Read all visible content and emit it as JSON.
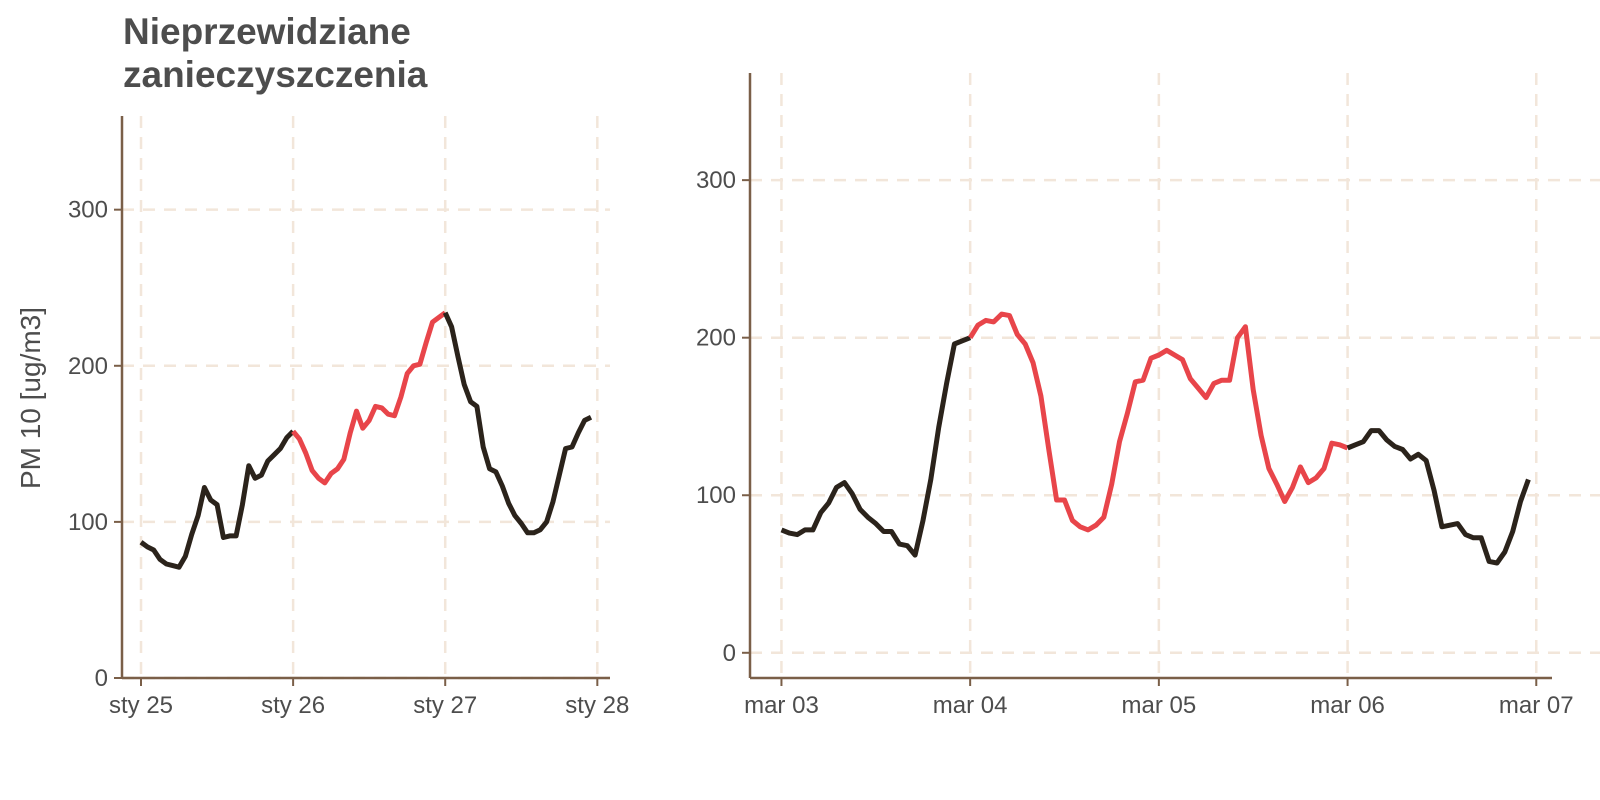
{
  "title_lines": [
    "Nieprzewidziane",
    "zanieczyszczenia"
  ],
  "ylabel": "PM 10 [ug/m3]",
  "colors": {
    "normal": "#2b231b",
    "exceed": "#e8454a",
    "axis": "#7a5f48",
    "grid": "#f2e6da",
    "text": "#4d4d4d"
  },
  "chart_data": [
    {
      "type": "line",
      "title": "Nieprzewidziane zanieczyszczenia",
      "ylabel": "PM 10 [ug/m3]",
      "ylim": [
        0,
        360
      ],
      "yticks": [
        0,
        100,
        200,
        300
      ],
      "xlim": [
        "2013-01-24T21:00",
        "2013-01-28T02:00"
      ],
      "xticks": [
        {
          "value": "2013-01-25T00:00",
          "label": "sty 25"
        },
        {
          "value": "2013-01-26T00:00",
          "label": "sty 26"
        },
        {
          "value": "2013-01-27T00:00",
          "label": "sty 27"
        },
        {
          "value": "2013-01-28T00:00",
          "label": "sty 28"
        }
      ],
      "grid": true,
      "series": [
        {
          "color_key": "normal",
          "x": [
            "2013-01-25T00:00",
            "2013-01-25T01:00",
            "2013-01-25T02:00",
            "2013-01-25T03:00",
            "2013-01-25T04:00",
            "2013-01-25T05:00",
            "2013-01-25T06:00",
            "2013-01-25T07:00",
            "2013-01-25T08:00",
            "2013-01-25T09:00",
            "2013-01-25T10:00",
            "2013-01-25T11:00",
            "2013-01-25T12:00",
            "2013-01-25T13:00",
            "2013-01-25T14:00",
            "2013-01-25T15:00",
            "2013-01-25T16:00",
            "2013-01-25T17:00",
            "2013-01-25T18:00",
            "2013-01-25T19:00",
            "2013-01-25T20:00",
            "2013-01-25T21:00",
            "2013-01-25T22:00",
            "2013-01-25T23:00",
            "2013-01-26T00:00"
          ],
          "values": [
            87,
            84,
            82,
            76,
            73,
            72,
            71,
            78,
            92,
            104,
            122,
            114,
            111,
            90,
            91,
            91,
            111,
            136,
            128,
            130,
            139,
            143,
            147,
            154,
            158
          ]
        },
        {
          "color_key": "exceed",
          "x": [
            "2013-01-26T00:00",
            "2013-01-26T01:00",
            "2013-01-26T02:00",
            "2013-01-26T03:00",
            "2013-01-26T04:00",
            "2013-01-26T05:00",
            "2013-01-26T06:00",
            "2013-01-26T07:00",
            "2013-01-26T08:00",
            "2013-01-26T09:00",
            "2013-01-26T10:00",
            "2013-01-26T11:00",
            "2013-01-26T12:00",
            "2013-01-26T13:00",
            "2013-01-26T14:00",
            "2013-01-26T15:00",
            "2013-01-26T16:00",
            "2013-01-26T17:00",
            "2013-01-26T18:00",
            "2013-01-26T19:00",
            "2013-01-26T20:00",
            "2013-01-26T21:00",
            "2013-01-26T22:00",
            "2013-01-26T23:00",
            "2013-01-27T00:00"
          ],
          "values": [
            158,
            153,
            144,
            133,
            128,
            125,
            131,
            134,
            140,
            157,
            171,
            160,
            165,
            174,
            173,
            169,
            168,
            180,
            195,
            200,
            201,
            215,
            228,
            231,
            234
          ]
        },
        {
          "color_key": "normal",
          "x": [
            "2013-01-27T00:00",
            "2013-01-27T01:00",
            "2013-01-27T02:00",
            "2013-01-27T03:00",
            "2013-01-27T04:00",
            "2013-01-27T05:00",
            "2013-01-27T06:00",
            "2013-01-27T07:00",
            "2013-01-27T08:00",
            "2013-01-27T09:00",
            "2013-01-27T10:00",
            "2013-01-27T11:00",
            "2013-01-27T12:00",
            "2013-01-27T13:00",
            "2013-01-27T14:00",
            "2013-01-27T15:00",
            "2013-01-27T16:00",
            "2013-01-27T17:00",
            "2013-01-27T18:00",
            "2013-01-27T19:00",
            "2013-01-27T20:00",
            "2013-01-27T21:00",
            "2013-01-27T22:00",
            "2013-01-27T23:00"
          ],
          "values": [
            234,
            225,
            206,
            188,
            177,
            174,
            148,
            134,
            132,
            123,
            112,
            104,
            99,
            93,
            93,
            95,
            100,
            113,
            130,
            147,
            148,
            157,
            165,
            167
          ]
        }
      ]
    },
    {
      "type": "line",
      "ylim": [
        -16,
        368
      ],
      "yticks": [
        0,
        100,
        200,
        300
      ],
      "xlim": [
        "2013-03-02T20:00",
        "2013-03-07T02:00"
      ],
      "xticks": [
        {
          "value": "2013-03-03T00:00",
          "label": "mar 03"
        },
        {
          "value": "2013-03-04T00:00",
          "label": "mar 04"
        },
        {
          "value": "2013-03-05T00:00",
          "label": "mar 05"
        },
        {
          "value": "2013-03-06T00:00",
          "label": "mar 06"
        },
        {
          "value": "2013-03-07T00:00",
          "label": "mar 07"
        }
      ],
      "grid": true,
      "series": [
        {
          "color_key": "normal",
          "x": [
            "2013-03-03T00:00",
            "2013-03-03T01:00",
            "2013-03-03T02:00",
            "2013-03-03T03:00",
            "2013-03-03T04:00",
            "2013-03-03T05:00",
            "2013-03-03T06:00",
            "2013-03-03T07:00",
            "2013-03-03T08:00",
            "2013-03-03T09:00",
            "2013-03-03T10:00",
            "2013-03-03T11:00",
            "2013-03-03T12:00",
            "2013-03-03T13:00",
            "2013-03-03T14:00",
            "2013-03-03T15:00",
            "2013-03-03T16:00",
            "2013-03-03T17:00",
            "2013-03-03T18:00",
            "2013-03-03T19:00",
            "2013-03-03T20:00",
            "2013-03-03T21:00",
            "2013-03-03T22:00",
            "2013-03-03T23:00",
            "2013-03-04T00:00"
          ],
          "values": [
            78,
            76,
            75,
            78,
            78,
            89,
            95,
            105,
            108,
            101,
            91,
            86,
            82,
            77,
            77,
            69,
            68,
            62,
            84,
            110,
            143,
            171,
            196,
            198,
            200
          ]
        },
        {
          "color_key": "exceed",
          "x": [
            "2013-03-04T00:00",
            "2013-03-04T01:00",
            "2013-03-04T02:00",
            "2013-03-04T03:00",
            "2013-03-04T04:00",
            "2013-03-04T05:00",
            "2013-03-04T06:00",
            "2013-03-04T07:00",
            "2013-03-04T08:00",
            "2013-03-04T09:00",
            "2013-03-04T10:00",
            "2013-03-04T11:00",
            "2013-03-04T12:00",
            "2013-03-04T13:00",
            "2013-03-04T14:00",
            "2013-03-04T15:00",
            "2013-03-04T16:00",
            "2013-03-04T17:00",
            "2013-03-04T18:00",
            "2013-03-04T19:00",
            "2013-03-04T20:00",
            "2013-03-04T21:00",
            "2013-03-04T22:00",
            "2013-03-04T23:00",
            "2013-03-05T00:00",
            "2013-03-05T01:00",
            "2013-03-05T02:00",
            "2013-03-05T03:00",
            "2013-03-05T04:00",
            "2013-03-05T05:00",
            "2013-03-05T06:00",
            "2013-03-05T07:00",
            "2013-03-05T08:00",
            "2013-03-05T09:00",
            "2013-03-05T10:00",
            "2013-03-05T11:00",
            "2013-03-05T12:00",
            "2013-03-05T13:00",
            "2013-03-05T14:00",
            "2013-03-05T15:00",
            "2013-03-05T16:00",
            "2013-03-05T17:00",
            "2013-03-05T18:00",
            "2013-03-05T19:00",
            "2013-03-05T20:00",
            "2013-03-05T21:00",
            "2013-03-05T22:00",
            "2013-03-05T23:00",
            "2013-03-06T00:00"
          ],
          "values": [
            200,
            208,
            211,
            210,
            215,
            214,
            202,
            196,
            184,
            163,
            129,
            97,
            97,
            84,
            80,
            78,
            81,
            86,
            107,
            134,
            152,
            172,
            173,
            187,
            189,
            192,
            189,
            186,
            174,
            168,
            162,
            171,
            173,
            173,
            200,
            207,
            167,
            138,
            117,
            107,
            96,
            105,
            118,
            108,
            111,
            117,
            133,
            132,
            130
          ]
        },
        {
          "color_key": "normal",
          "x": [
            "2013-03-06T00:00",
            "2013-03-06T01:00",
            "2013-03-06T02:00",
            "2013-03-06T03:00",
            "2013-03-06T04:00",
            "2013-03-06T05:00",
            "2013-03-06T06:00",
            "2013-03-06T07:00",
            "2013-03-06T08:00",
            "2013-03-06T09:00",
            "2013-03-06T10:00",
            "2013-03-06T11:00",
            "2013-03-06T12:00",
            "2013-03-06T13:00",
            "2013-03-06T14:00",
            "2013-03-06T15:00",
            "2013-03-06T16:00",
            "2013-03-06T17:00",
            "2013-03-06T18:00",
            "2013-03-06T19:00",
            "2013-03-06T20:00",
            "2013-03-06T21:00",
            "2013-03-06T22:00",
            "2013-03-06T23:00"
          ],
          "values": [
            130,
            132,
            134,
            141,
            141,
            135,
            131,
            129,
            123,
            126,
            122,
            103,
            80,
            81,
            82,
            75,
            73,
            73,
            58,
            57,
            64,
            77,
            96,
            110
          ]
        }
      ]
    }
  ]
}
